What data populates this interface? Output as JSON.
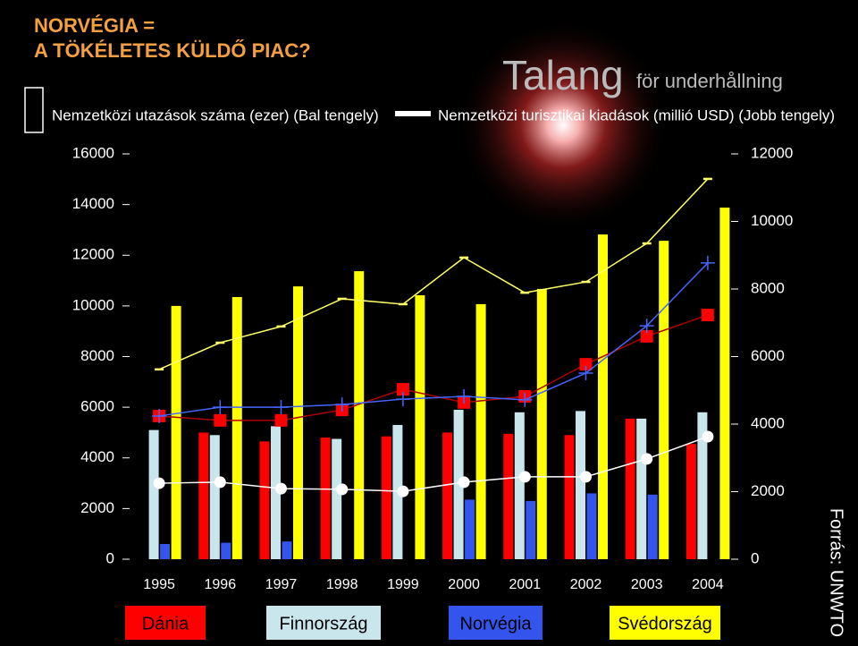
{
  "title_lines": [
    "NORVÉGIA =",
    "A TÖKÉLETES KÜLDŐ PIAC?"
  ],
  "logo": {
    "main": "Talang",
    "sub": "för underhållning"
  },
  "legend_bars_label": "Nemzetközi utazások száma (ezer) (Bal tengely)",
  "legend_lines_label": "Nemzetközi turisztikai kiadások (millió USD) (Jobb tengely)",
  "source": "Forrás: UNWTO",
  "chart_data": {
    "type": "bar_line",
    "categories": [
      "1995",
      "1996",
      "1997",
      "1998",
      "1999",
      "2000",
      "2001",
      "2002",
      "2003",
      "2004"
    ],
    "ylim": [
      0,
      16000
    ],
    "yticks": [
      0,
      2000,
      4000,
      6000,
      8000,
      10000,
      12000,
      14000,
      16000
    ],
    "y2lim": [
      0,
      12000
    ],
    "y2ticks": [
      0,
      2000,
      4000,
      6000,
      8000,
      10000,
      12000
    ],
    "series": [
      {
        "name": "Dánia",
        "type": "bar",
        "color": "#ff0000",
        "values": [
          null,
          5000,
          4650,
          4800,
          4850,
          5000,
          4950,
          4900,
          5550,
          4550
        ]
      },
      {
        "name": "Finnország",
        "type": "bar",
        "color": "#c9e6ec",
        "values": [
          5100,
          4900,
          5250,
          4750,
          5300,
          5900,
          5800,
          5850,
          5550,
          5800
        ]
      },
      {
        "name": "Norvégia",
        "type": "bar",
        "color": "#3355ee",
        "values": [
          600,
          650,
          700,
          null,
          null,
          2350,
          2300,
          2600,
          2550,
          null
        ]
      },
      {
        "name": "Svédország",
        "type": "bar",
        "color": "#ffff00",
        "values": [
          10000,
          10350,
          10770,
          11370,
          10420,
          10070,
          10670,
          12820,
          12570,
          13880
        ]
      },
      {
        "type": "line",
        "axis": "y2",
        "color": "#ff0000",
        "marker": "square",
        "values": [
          4240,
          4110,
          4110,
          4420,
          5030,
          4640,
          4820,
          5770,
          6600,
          7230
        ]
      },
      {
        "type": "line",
        "axis": "y2",
        "color": "#ffffff",
        "marker": "circle",
        "values": [
          2250,
          2280,
          2090,
          2070,
          2010,
          2280,
          2440,
          2440,
          2970,
          3630
        ]
      },
      {
        "type": "line",
        "axis": "y2",
        "color": "#4466ff",
        "marker": "plus",
        "values": [
          4240,
          4500,
          4500,
          4580,
          4740,
          4820,
          4720,
          5510,
          6910,
          8770
        ]
      },
      {
        "type": "line",
        "axis": "y2",
        "color": "#ffff66",
        "marker": "dash",
        "values": [
          5620,
          6410,
          6890,
          7710,
          7550,
          8930,
          7890,
          8210,
          9350,
          11260
        ]
      }
    ]
  }
}
